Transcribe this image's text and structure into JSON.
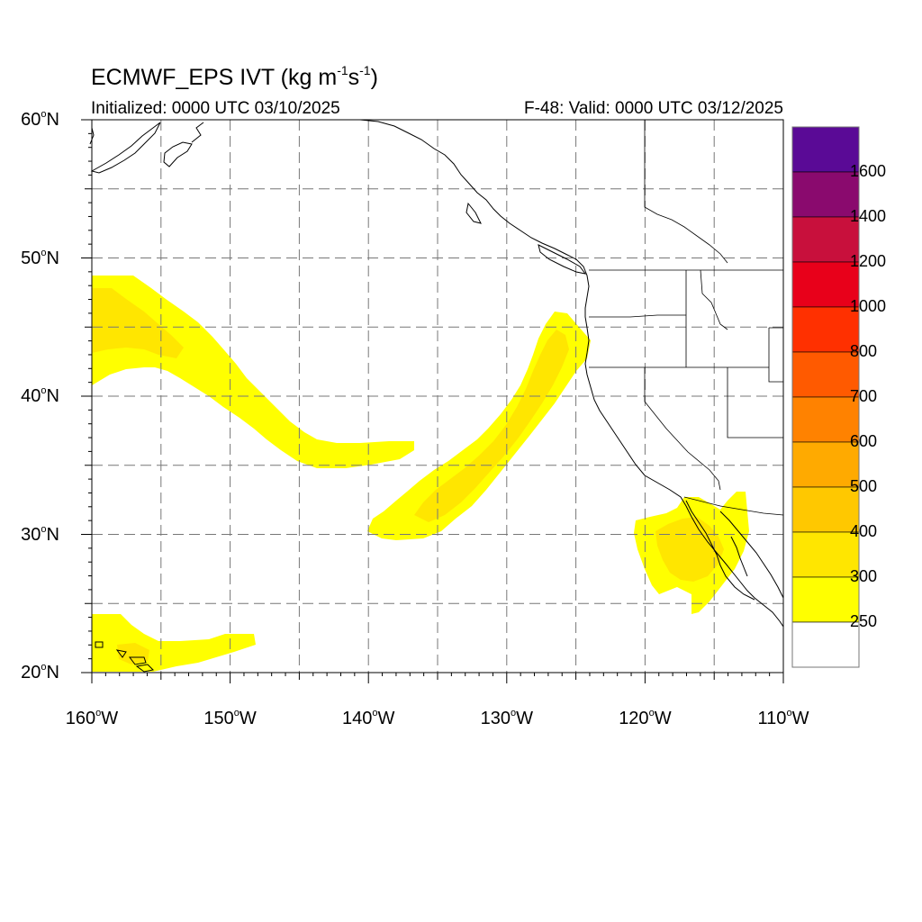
{
  "title": {
    "prefix": "ECMWF_EPS IVT (kg m",
    "sup1": "-1",
    "mid": "s",
    "sup2": "-1",
    "suffix": ")"
  },
  "initialized": "Initialized: 0000 UTC 03/10/2025",
  "valid": "F-48: Valid: 0000 UTC 03/12/2025",
  "degree_mark": "o",
  "lat_labels": [
    {
      "num": "60",
      "hemi": "N"
    },
    {
      "num": "50",
      "hemi": "N"
    },
    {
      "num": "40",
      "hemi": "N"
    },
    {
      "num": "30",
      "hemi": "N"
    },
    {
      "num": "20",
      "hemi": "N"
    }
  ],
  "lon_labels": [
    {
      "num": "160",
      "hemi": "W"
    },
    {
      "num": "150",
      "hemi": "W"
    },
    {
      "num": "140",
      "hemi": "W"
    },
    {
      "num": "130",
      "hemi": "W"
    },
    {
      "num": "120",
      "hemi": "W"
    },
    {
      "num": "110",
      "hemi": "W"
    }
  ],
  "colorbar": {
    "labels": [
      "1600",
      "1400",
      "1200",
      "1000",
      "800",
      "700",
      "600",
      "500",
      "400",
      "300",
      "250"
    ],
    "colors": [
      "#5a0a96",
      "#8a0a6e",
      "#c8103c",
      "#e8001a",
      "#ff3000",
      "#ff5a00",
      "#ff8200",
      "#ffaa00",
      "#ffc800",
      "#ffe600",
      "#ffff00",
      "#ffffff"
    ]
  },
  "chart_data": {
    "type": "heatmap",
    "map_extent": {
      "lon_min": -160,
      "lon_max": -110,
      "lat_min": 20,
      "lat_max": 60
    },
    "grid_spacing_deg": 5,
    "contour_levels": [
      250,
      300,
      400,
      500,
      600,
      700,
      800,
      1000,
      1200,
      1400,
      1600
    ],
    "ivt_regions": [
      {
        "level": "250-300",
        "lon": [
          -160,
          -136
        ],
        "lat": [
          35,
          48.5
        ]
      },
      {
        "level": "300-400",
        "lon": [
          -160,
          -152
        ],
        "lat": [
          42,
          47
        ]
      },
      {
        "level": "250-300",
        "lon": [
          -140,
          -124
        ],
        "lat": [
          30,
          46
        ]
      },
      {
        "level": "300-400",
        "lon": [
          -136,
          -127
        ],
        "lat": [
          31,
          45
        ]
      },
      {
        "level": "250-300",
        "lon": [
          -121,
          -113
        ],
        "lat": [
          24.5,
          33
        ]
      },
      {
        "level": "300-400",
        "lon": [
          -119,
          -114
        ],
        "lat": [
          27,
          31
        ]
      },
      {
        "level": "250-300",
        "lon": [
          -160,
          -148
        ],
        "lat": [
          20,
          24
        ]
      },
      {
        "level": "300-400",
        "lon": [
          -158,
          -155
        ],
        "lat": [
          21,
          22
        ]
      }
    ]
  }
}
